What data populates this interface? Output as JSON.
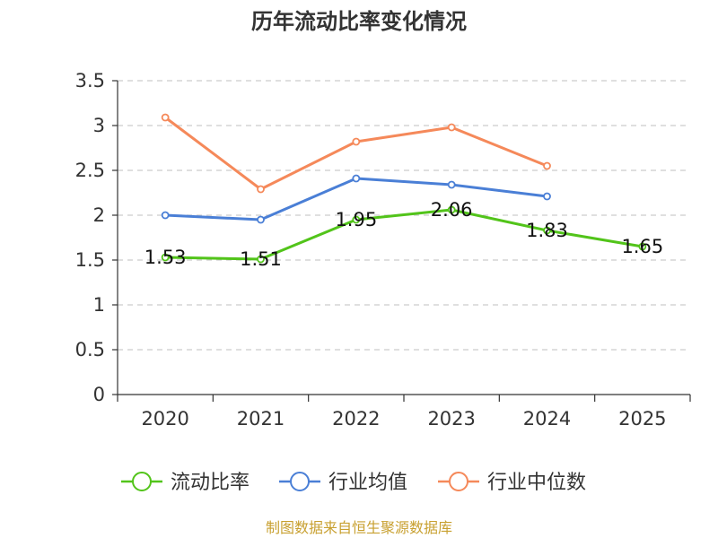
{
  "chart_data": {
    "type": "line",
    "title": "历年流动比率变化情况",
    "categories": [
      "2020",
      "2021",
      "2022",
      "2023",
      "2024",
      "2025"
    ],
    "y_ticks": [
      "0",
      "0.5",
      "1",
      "1.5",
      "2",
      "2.5",
      "3",
      "3.5"
    ],
    "ylim": [
      0,
      3.5
    ],
    "grid": true,
    "legend_position": "bottom",
    "series": [
      {
        "name": "流动比率",
        "color": "#52c41a",
        "values": [
          1.53,
          1.51,
          1.95,
          2.06,
          1.83,
          1.65
        ],
        "labels": [
          "1.53",
          "1.51",
          "1.95",
          "2.06",
          "1.83",
          "1.65"
        ],
        "show_labels": true
      },
      {
        "name": "行业均值",
        "color": "#4a7fd6",
        "values": [
          2.0,
          1.95,
          2.41,
          2.34,
          2.21,
          null
        ],
        "show_labels": false
      },
      {
        "name": "行业中位数",
        "color": "#f5895a",
        "values": [
          3.09,
          2.29,
          2.82,
          2.98,
          2.55,
          null
        ],
        "show_labels": false
      }
    ]
  },
  "source": "制图数据来自恒生聚源数据库"
}
